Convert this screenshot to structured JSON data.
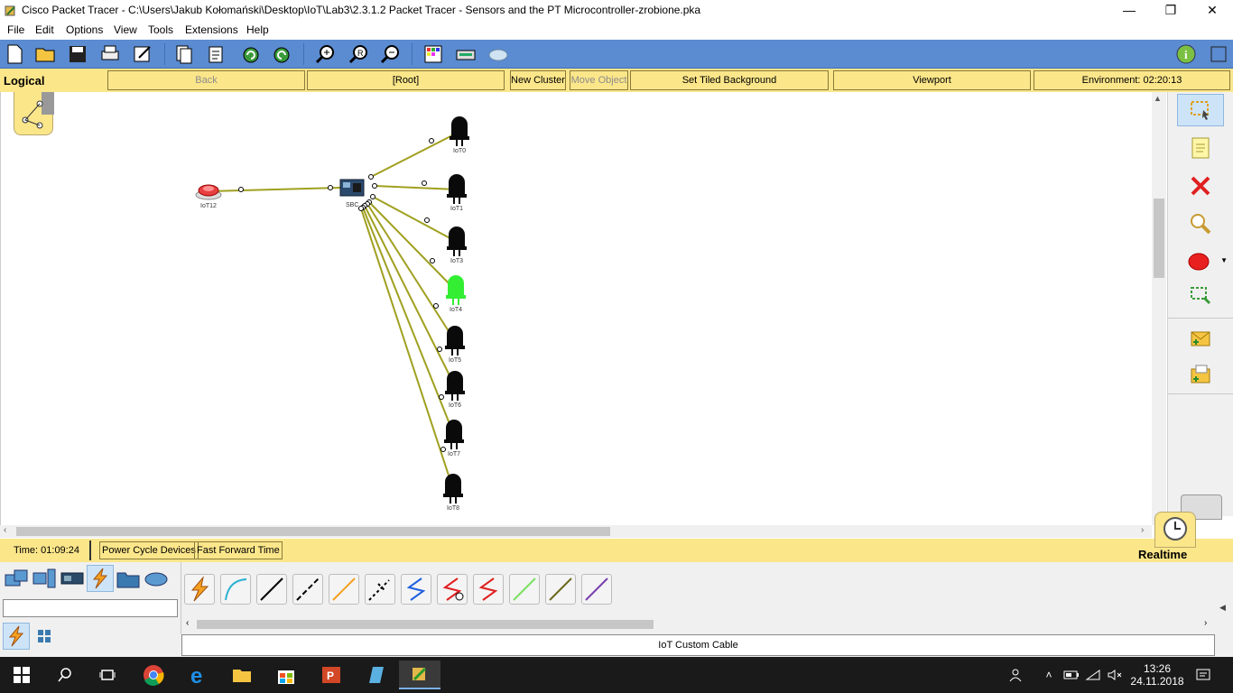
{
  "window": {
    "title": "Cisco Packet Tracer - C:\\Users\\Jakub Kołomański\\Desktop\\IoT\\Lab3\\2.3.1.2 Packet Tracer - Sensors and the PT Microcontroller-zrobione.pka",
    "minimize": "—",
    "restore": "❐",
    "close": "✕"
  },
  "menu": [
    "File",
    "Edit",
    "Options",
    "View",
    "Tools",
    "Extensions",
    "Help"
  ],
  "logical_bar": {
    "mode": "Logical",
    "back": "Back",
    "root": "[Root]",
    "new_cluster": "New Cluster",
    "move_object": "Move Object",
    "set_tiled_background": "Set Tiled Background",
    "viewport": "Viewport",
    "environment": "Environment: 02:20:13"
  },
  "devices": {
    "iot12": "IoT12",
    "sbc": "SBC",
    "leds": [
      "IoT0",
      "IoT1",
      "IoT3",
      "IoT4",
      "IoT5",
      "IoT6",
      "IoT7",
      "IoT8"
    ],
    "led_on": "IoT4",
    "led_on_color": "#33ee33",
    "led_off_color": "#0a0a0a",
    "cable_color": "#a0a020"
  },
  "status_bar": {
    "time": "Time: 01:09:24",
    "power_cycle": "Power Cycle Devices",
    "fast_forward": "Fast Forward Time",
    "mode": "Realtime"
  },
  "bottom_panel": {
    "selected_cable": "IoT Custom Cable"
  },
  "taskbar": {
    "clock_time": "13:26",
    "clock_date": "24.11.2018"
  },
  "colors": {
    "toolbar": "#5b8bd0",
    "yellow_bar": "#fbe68a"
  }
}
